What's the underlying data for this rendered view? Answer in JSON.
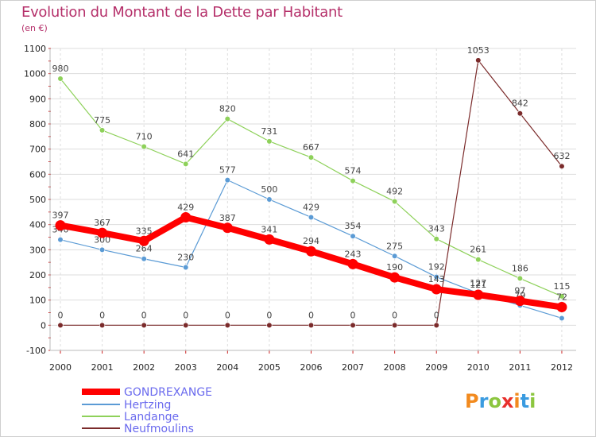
{
  "header": {
    "title": "Evolution du Montant de la Dette par Habitant",
    "unit": "(en €)"
  },
  "brand": {
    "logo_text": "Proxiti"
  },
  "chart_data": {
    "type": "line",
    "title": "Evolution du Montant de la Dette par Habitant",
    "ylabel": "(en €)",
    "xlabel": "",
    "x": [
      "2000",
      "2001",
      "2002",
      "2003",
      "2004",
      "2005",
      "2006",
      "2007",
      "2008",
      "2009",
      "2010",
      "2011",
      "2012"
    ],
    "ylim": [
      -100,
      1100
    ],
    "yticks": [
      -100,
      0,
      100,
      200,
      300,
      400,
      500,
      600,
      700,
      800,
      900,
      1000,
      1100
    ],
    "grid": true,
    "legend_position": "bottom-left",
    "series": [
      {
        "name": "Hertzing",
        "color": "#5b9bd5",
        "style": "thin",
        "values": [
          340,
          300,
          264,
          230,
          577,
          500,
          429,
          354,
          275,
          192,
          127,
          79,
          28
        ],
        "labels": [
          "340",
          "300",
          "264",
          "230",
          "577",
          "500",
          "429",
          "354",
          "275",
          "192",
          "127",
          "79",
          ""
        ]
      },
      {
        "name": "Landange",
        "color": "#8ed15a",
        "style": "thin",
        "values": [
          980,
          775,
          710,
          641,
          820,
          731,
          667,
          574,
          492,
          343,
          261,
          186,
          115
        ],
        "labels": [
          "980",
          "775",
          "710",
          "641",
          "820",
          "731",
          "667",
          "574",
          "492",
          "343",
          "261",
          "186",
          "115"
        ]
      },
      {
        "name": "Neufmoulins",
        "color": "#7b2b2b",
        "style": "thin",
        "values": [
          0,
          0,
          0,
          0,
          0,
          0,
          0,
          0,
          0,
          0,
          1053,
          842,
          632
        ],
        "labels": [
          "0",
          "0",
          "0",
          "0",
          "0",
          "0",
          "0",
          "0",
          "0",
          "0",
          "1053",
          "842",
          "632"
        ]
      },
      {
        "name": "GONDREXANGE",
        "color": "#ff0000",
        "style": "thick",
        "values": [
          397,
          367,
          335,
          429,
          387,
          341,
          294,
          243,
          190,
          143,
          121,
          97,
          72
        ],
        "labels": [
          "397",
          "367",
          "335",
          "429",
          "387",
          "341",
          "294",
          "243",
          "190",
          "143",
          "121",
          "97",
          "72"
        ]
      }
    ],
    "legend": [
      "GONDREXANGE",
      "Hertzing",
      "Landange",
      "Neufmoulins"
    ]
  }
}
